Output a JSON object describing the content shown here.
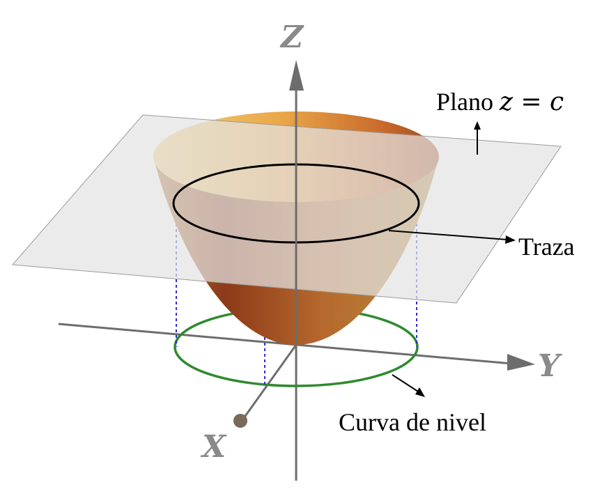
{
  "axes": {
    "z_label": "Z",
    "y_label": "Y",
    "x_label": "X"
  },
  "annotations": {
    "plane_label_prefix": "Plano ",
    "plane_label_math": "z = c",
    "trace_label": "Traza",
    "level_curve_label": "Curva de nivel"
  },
  "colors": {
    "plane_fill": "#e3e3e3",
    "surface_light": "#e8b85a",
    "surface_dark": "#8a3d16",
    "level_curve": "#2e8a2e",
    "projection_lines": "#2a2ad8",
    "axis": "#6d6d6d",
    "trace": "#000000"
  }
}
